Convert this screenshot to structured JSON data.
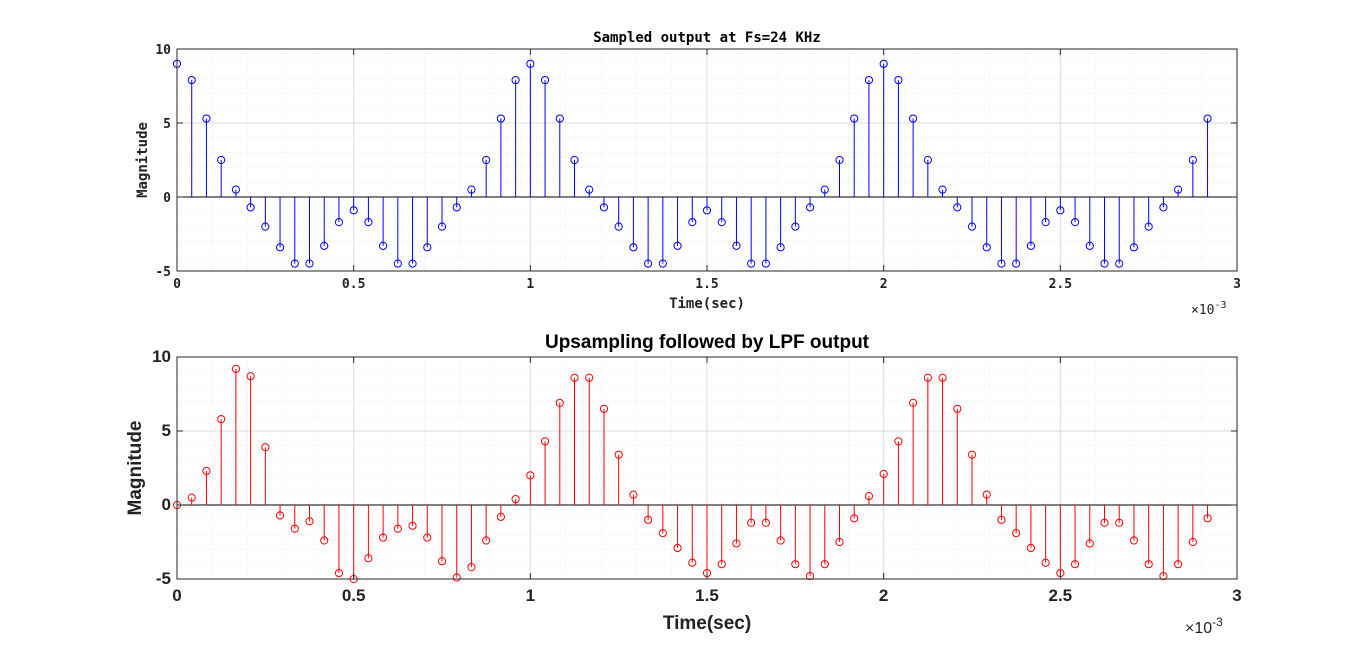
{
  "chart_data": [
    {
      "type": "stem",
      "title": "Sampled output at Fs=24 KHz",
      "xlabel": "Time(sec)",
      "ylabel": "Magnitude",
      "x_exponent_label": "×10",
      "x_exponent_power": "-3",
      "xlim": [
        0,
        3
      ],
      "ylim": [
        -5,
        10
      ],
      "xticks": [
        0,
        0.5,
        1,
        1.5,
        2,
        2.5,
        3
      ],
      "xtick_labels": [
        "0",
        "0.5",
        "1",
        "1.5",
        "2",
        "2.5",
        "3"
      ],
      "yticks": [
        -5,
        0,
        5,
        10
      ],
      "ytick_labels": [
        "-5",
        "0",
        "5",
        "10"
      ],
      "grid": true,
      "minor_grid": true,
      "color": "#0000ff",
      "x_step": 0.041667,
      "values": [
        9,
        7.9,
        5.3,
        2.5,
        0.5,
        -0.7,
        -2,
        -3.4,
        -4.5,
        -4.5,
        -3.3,
        -1.7,
        -0.9,
        -1.7,
        -3.3,
        -4.5,
        -4.5,
        -3.4,
        -2,
        -0.7,
        0.5,
        2.5,
        5.3,
        7.9,
        9,
        7.9,
        5.3,
        2.5,
        0.5,
        -0.7,
        -2,
        -3.4,
        -4.5,
        -4.5,
        -3.3,
        -1.7,
        -0.9,
        -1.7,
        -3.3,
        -4.5,
        -4.5,
        -3.4,
        -2,
        -0.7,
        0.5,
        2.5,
        5.3,
        7.9,
        9,
        7.9,
        5.3,
        2.5,
        0.5,
        -0.7,
        -2,
        -3.4,
        -4.5,
        -4.5,
        -3.3,
        -1.7,
        -0.9,
        -1.7,
        -3.3,
        -4.5,
        -4.5,
        -3.4,
        -2,
        -0.7,
        0.5,
        2.5,
        5.3
      ]
    },
    {
      "type": "stem",
      "title": "Upsampling followed by LPF output",
      "xlabel": "Time(sec)",
      "ylabel": "Magnitude",
      "x_exponent_label": "×10",
      "x_exponent_power": "-3",
      "xlim": [
        0,
        3
      ],
      "ylim": [
        -5,
        10
      ],
      "xticks": [
        0,
        0.5,
        1,
        1.5,
        2,
        2.5,
        3
      ],
      "xtick_labels": [
        "0",
        "0.5",
        "1",
        "1.5",
        "2",
        "2.5",
        "3"
      ],
      "yticks": [
        -5,
        0,
        5,
        10
      ],
      "ytick_labels": [
        "-5",
        "0",
        "5",
        "10"
      ],
      "grid": true,
      "minor_grid": true,
      "color": "#ff0000",
      "x_step": 0.041667,
      "values": [
        0,
        0.5,
        2.3,
        5.8,
        9.2,
        8.7,
        3.9,
        -0.7,
        -1.6,
        -1.1,
        -2.4,
        -4.6,
        -5,
        -3.6,
        -2.2,
        -1.6,
        -1.4,
        -2.2,
        -3.8,
        -4.9,
        -4.2,
        -2.4,
        -0.8,
        0.4,
        2,
        4.3,
        6.9,
        8.6,
        8.6,
        6.5,
        3.4,
        0.7,
        -1,
        -1.9,
        -2.9,
        -3.9,
        -4.6,
        -4,
        -2.6,
        -1.2,
        -1.2,
        -2.4,
        -4,
        -4.8,
        -4,
        -2.5,
        -0.9,
        0.6,
        2.1,
        4.3,
        6.9,
        8.6,
        8.6,
        6.5,
        3.4,
        0.7,
        -1,
        -1.9,
        -2.9,
        -3.9,
        -4.6,
        -4,
        -2.6,
        -1.2,
        -1.2,
        -2.4,
        -4,
        -4.8,
        -4,
        -2.5,
        -0.9
      ]
    }
  ]
}
